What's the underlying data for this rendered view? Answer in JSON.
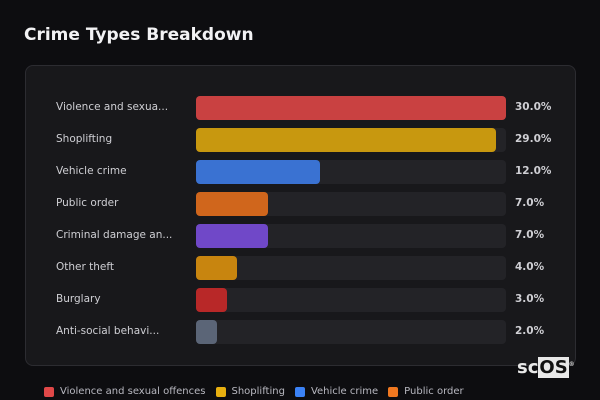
{
  "title": "Crime Types Breakdown",
  "chart_data": {
    "type": "bar",
    "orientation": "horizontal",
    "title": "Crime Types Breakdown",
    "max": 30,
    "categories": [
      "Violence and sexua...",
      "Shoplifting",
      "Vehicle crime",
      "Public order",
      "Criminal damage an...",
      "Other theft",
      "Burglary",
      "Anti-social behavi..."
    ],
    "values": [
      30.0,
      29.0,
      12.0,
      7.0,
      7.0,
      4.0,
      3.0,
      2.0
    ],
    "value_labels": [
      "30.0%",
      "29.0%",
      "12.0%",
      "7.0%",
      "7.0%",
      "4.0%",
      "3.0%",
      "2.0%"
    ],
    "colors": [
      "#c94141",
      "#c8980f",
      "#3a72d2",
      "#d0661c",
      "#7048c8",
      "#c8850f",
      "#b82828",
      "#5b6577"
    ]
  },
  "legend": [
    {
      "label": "Violence and sexual offences",
      "color": "#e04848"
    },
    {
      "label": "Shoplifting",
      "color": "#e8b010"
    },
    {
      "label": "Vehicle crime",
      "color": "#3b82f6"
    },
    {
      "label": "Public order",
      "color": "#f07820"
    }
  ],
  "logo": {
    "a": "sc",
    "b": "OS",
    "mark": "®"
  }
}
